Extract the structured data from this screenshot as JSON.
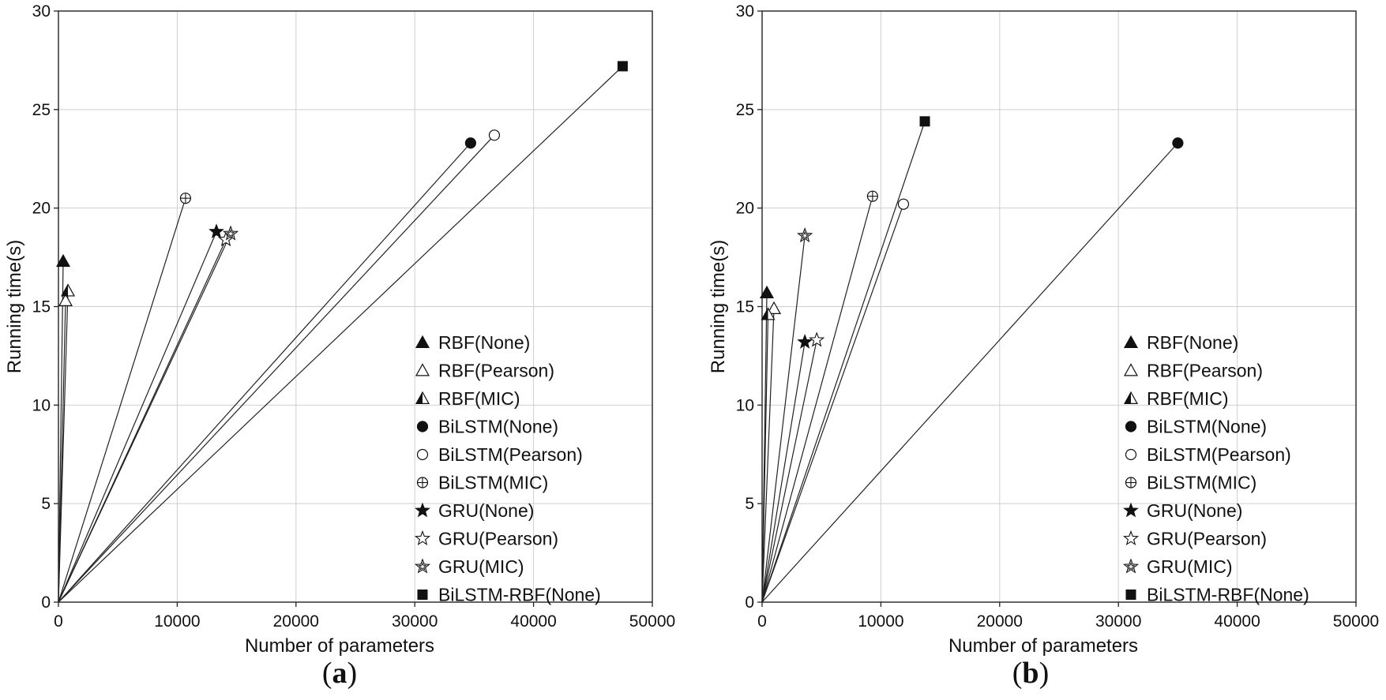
{
  "chart_data": [
    {
      "type": "scatter",
      "panel_label": "(a)",
      "panel_letter": "a",
      "xlabel": "Number of parameters",
      "ylabel": "Running time(s)",
      "xlim": [
        0,
        50000
      ],
      "ylim": [
        0,
        30
      ],
      "xticks": [
        "0",
        "10000",
        "20000",
        "30000",
        "40000",
        "50000"
      ],
      "yticks": [
        "0",
        "5",
        "10",
        "15",
        "20",
        "25",
        "30"
      ],
      "grid": true,
      "rays_from_origin": true,
      "legend_position": "bottom-right",
      "series": [
        {
          "name": "RBF(None)",
          "marker": "triangle-filled",
          "x": 400,
          "y": 17.3
        },
        {
          "name": "RBF(Pearson)",
          "marker": "triangle-open",
          "x": 600,
          "y": 15.3
        },
        {
          "name": "RBF(MIC)",
          "marker": "triangle-half",
          "x": 800,
          "y": 15.8
        },
        {
          "name": "BiLSTM(None)",
          "marker": "circle-filled",
          "x": 34700,
          "y": 23.3
        },
        {
          "name": "BiLSTM(Pearson)",
          "marker": "circle-open",
          "x": 36700,
          "y": 23.7
        },
        {
          "name": "BiLSTM(MIC)",
          "marker": "circle-plus",
          "x": 10700,
          "y": 20.5
        },
        {
          "name": "GRU(None)",
          "marker": "star-filled",
          "x": 13300,
          "y": 18.8
        },
        {
          "name": "GRU(Pearson)",
          "marker": "star-open",
          "x": 14100,
          "y": 18.4
        },
        {
          "name": "GRU(MIC)",
          "marker": "star-hatched",
          "x": 14500,
          "y": 18.7
        },
        {
          "name": "BiLSTM-RBF(None)",
          "marker": "square-filled",
          "x": 47500,
          "y": 27.2
        }
      ]
    },
    {
      "type": "scatter",
      "panel_label": "(b)",
      "panel_letter": "b",
      "xlabel": "Number of parameters",
      "ylabel": "Running time(s)",
      "xlim": [
        0,
        50000
      ],
      "ylim": [
        0,
        30
      ],
      "xticks": [
        "0",
        "10000",
        "20000",
        "30000",
        "40000",
        "50000"
      ],
      "yticks": [
        "0",
        "5",
        "10",
        "15",
        "20",
        "25",
        "30"
      ],
      "grid": true,
      "rays_from_origin": true,
      "legend_position": "bottom-right",
      "series": [
        {
          "name": "RBF(None)",
          "marker": "triangle-filled",
          "x": 400,
          "y": 15.7
        },
        {
          "name": "RBF(Pearson)",
          "marker": "triangle-open",
          "x": 1000,
          "y": 14.9
        },
        {
          "name": "RBF(MIC)",
          "marker": "triangle-half",
          "x": 500,
          "y": 14.6
        },
        {
          "name": "BiLSTM(None)",
          "marker": "circle-filled",
          "x": 35000,
          "y": 23.3
        },
        {
          "name": "BiLSTM(Pearson)",
          "marker": "circle-open",
          "x": 11900,
          "y": 20.2
        },
        {
          "name": "BiLSTM(MIC)",
          "marker": "circle-plus",
          "x": 9300,
          "y": 20.6
        },
        {
          "name": "GRU(None)",
          "marker": "star-filled",
          "x": 3600,
          "y": 13.2
        },
        {
          "name": "GRU(Pearson)",
          "marker": "star-open",
          "x": 4600,
          "y": 13.3
        },
        {
          "name": "GRU(MIC)",
          "marker": "star-hatched",
          "x": 3600,
          "y": 18.6
        },
        {
          "name": "BiLSTM-RBF(None)",
          "marker": "square-filled",
          "x": 13700,
          "y": 24.4
        }
      ]
    }
  ]
}
